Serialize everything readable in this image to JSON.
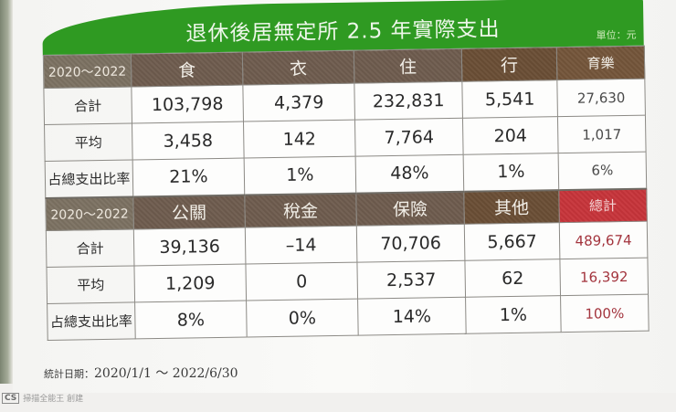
{
  "title": "退休後居無定所 2.5 年實際支出",
  "unit_label": "單位：元",
  "colors": {
    "banner_green": "#2f9a22",
    "header_brown": "#6e5c4e",
    "header_red": "#c7343a",
    "total_text_red": "#a3343d"
  },
  "table1": {
    "period": "2020～2022",
    "headers": [
      "食",
      "衣",
      "住",
      "行",
      "育樂"
    ],
    "rows": [
      {
        "label": "合計",
        "values": [
          "103,798",
          "4,379",
          "232,831",
          "5,541",
          "27,630"
        ]
      },
      {
        "label": "平均",
        "values": [
          "3,458",
          "142",
          "7,764",
          "204",
          "1,017"
        ]
      },
      {
        "label": "占總支出比率",
        "values": [
          "21%",
          "1%",
          "48%",
          "1%",
          "6%"
        ]
      }
    ]
  },
  "table2": {
    "period": "2020～2022",
    "headers": [
      "公關",
      "稅金",
      "保險",
      "其他",
      "總計"
    ],
    "rows": [
      {
        "label": "合計",
        "values": [
          "39,136",
          "–14",
          "70,706",
          "5,667",
          "489,674"
        ]
      },
      {
        "label": "平均",
        "values": [
          "1,209",
          "0",
          "2,537",
          "62",
          "16,392"
        ]
      },
      {
        "label": "占總支出比率",
        "values": [
          "8%",
          "0%",
          "14%",
          "1%",
          "100%"
        ]
      }
    ]
  },
  "footnote": {
    "label": "統計日期：",
    "range": "2020/1/1 ～ 2022/6/30"
  },
  "watermark": {
    "badge": "CS",
    "text": "掃描全能王 創建"
  },
  "chart_data": {
    "type": "table",
    "title": "退休後居無定所 2.5 年實際支出",
    "unit": "元",
    "period": "2020～2022",
    "date_range": "2020/1/1 ～ 2022/6/30",
    "columns": [
      "食",
      "衣",
      "住",
      "行",
      "育樂",
      "公關",
      "稅金",
      "保險",
      "其他",
      "總計"
    ],
    "rows": [
      {
        "name": "合計",
        "values": [
          103798,
          4379,
          232831,
          5541,
          27630,
          39136,
          -14,
          70706,
          5667,
          489674
        ]
      },
      {
        "name": "平均",
        "values": [
          3458,
          142,
          7764,
          204,
          1017,
          1209,
          0,
          2537,
          62,
          16392
        ]
      },
      {
        "name": "占總支出比率",
        "values": [
          "21%",
          "1%",
          "48%",
          "1%",
          "6%",
          "8%",
          "0%",
          "14%",
          "1%",
          "100%"
        ]
      }
    ]
  }
}
